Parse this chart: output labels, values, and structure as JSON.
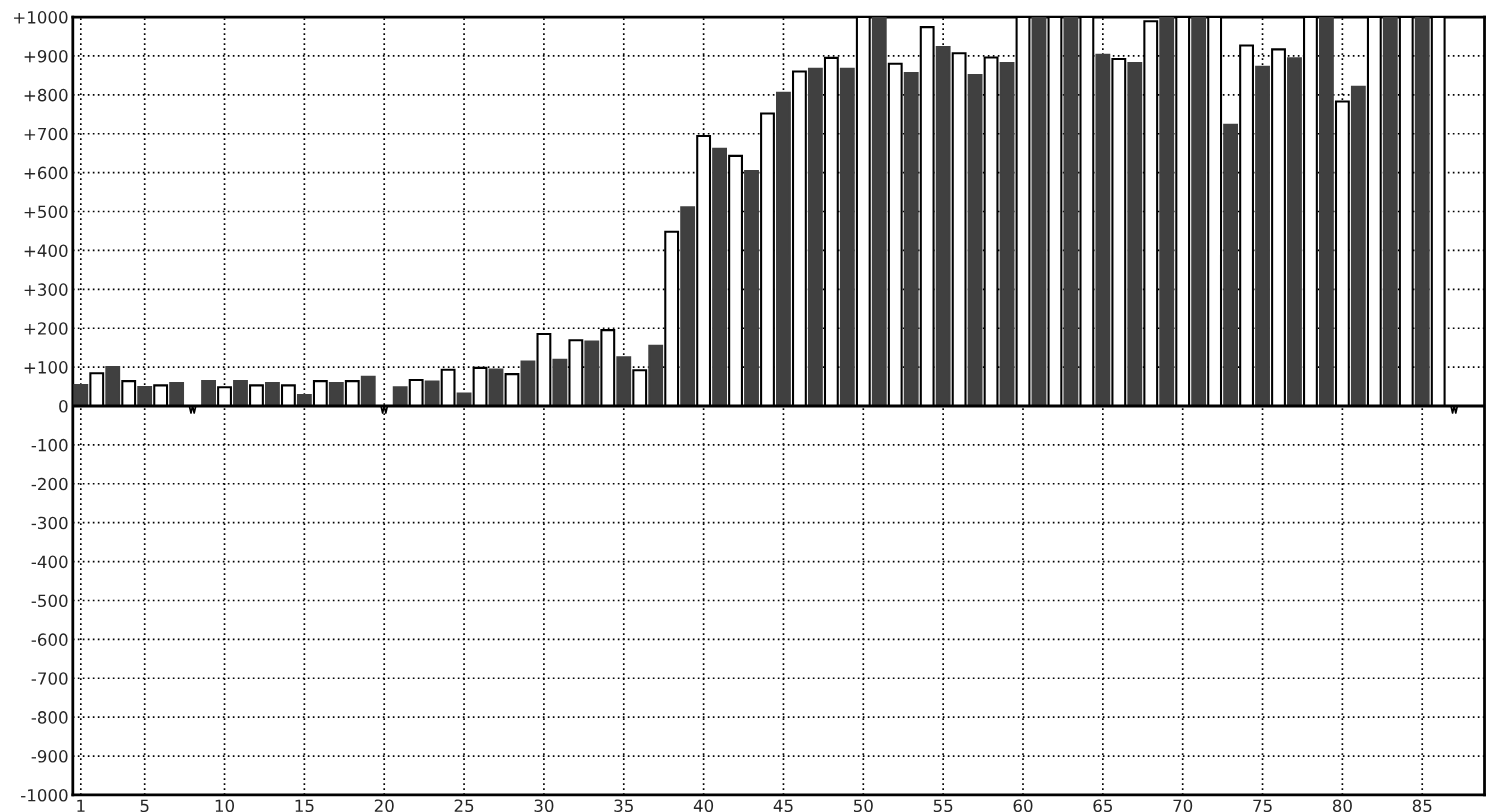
{
  "chart_data": {
    "type": "bar",
    "x": [
      1,
      2,
      3,
      4,
      5,
      6,
      7,
      8,
      9,
      10,
      11,
      12,
      13,
      14,
      15,
      16,
      17,
      18,
      19,
      20,
      21,
      22,
      23,
      24,
      25,
      26,
      27,
      28,
      29,
      30,
      31,
      32,
      33,
      34,
      35,
      36,
      37,
      38,
      39,
      40,
      41,
      42,
      43,
      44,
      45,
      46,
      47,
      48,
      49,
      50,
      51,
      52,
      53,
      54,
      55,
      56,
      57,
      58,
      59,
      60,
      61,
      62,
      63,
      64,
      65,
      66,
      67,
      68,
      69,
      70,
      71,
      72,
      73,
      74,
      75,
      76,
      77,
      78,
      79,
      80,
      81,
      82,
      83,
      84,
      85,
      86,
      87
    ],
    "values": [
      54,
      84,
      100,
      64,
      49,
      53,
      59,
      0,
      64,
      48,
      64,
      53,
      59,
      53,
      28,
      64,
      59,
      64,
      75,
      0,
      48,
      67,
      63,
      93,
      32,
      98,
      94,
      82,
      114,
      185,
      119,
      169,
      166,
      195,
      125,
      92,
      155,
      448,
      511,
      694,
      661,
      643,
      604,
      752,
      805,
      860,
      867,
      895,
      867,
      1000,
      1000,
      880,
      856,
      974,
      923,
      907,
      851,
      896,
      882,
      1000,
      1000,
      1000,
      1000,
      1000,
      903,
      892,
      882,
      989,
      1000,
      1000,
      1000,
      1000,
      723,
      927,
      872,
      917,
      894,
      1000,
      1000,
      783,
      821,
      1000,
      1000,
      1000,
      1000,
      1000,
      0
    ],
    "colors": [
      "#404040",
      "#ffffff",
      "#404040",
      "#ffffff",
      "#404040",
      "#ffffff",
      "#404040",
      "#000000",
      "#404040",
      "#ffffff",
      "#404040",
      "#ffffff",
      "#404040",
      "#ffffff",
      "#404040",
      "#ffffff",
      "#404040",
      "#ffffff",
      "#404040",
      "#000000",
      "#404040",
      "#ffffff",
      "#404040",
      "#ffffff",
      "#404040",
      "#ffffff",
      "#404040",
      "#ffffff",
      "#404040",
      "#ffffff",
      "#404040",
      "#ffffff",
      "#404040",
      "#ffffff",
      "#404040",
      "#ffffff",
      "#404040",
      "#ffffff",
      "#404040",
      "#ffffff",
      "#404040",
      "#ffffff",
      "#404040",
      "#ffffff",
      "#404040",
      "#ffffff",
      "#404040",
      "#ffffff",
      "#404040",
      "#ffffff",
      "#404040",
      "#ffffff",
      "#404040",
      "#ffffff",
      "#404040",
      "#ffffff",
      "#404040",
      "#ffffff",
      "#404040",
      "#ffffff",
      "#404040",
      "#ffffff",
      "#404040",
      "#ffffff",
      "#404040",
      "#ffffff",
      "#404040",
      "#ffffff",
      "#404040",
      "#ffffff",
      "#404040",
      "#ffffff",
      "#404040",
      "#ffffff",
      "#404040",
      "#ffffff",
      "#404040",
      "#ffffff",
      "#404040",
      "#ffffff",
      "#404040",
      "#ffffff",
      "#404040",
      "#ffffff",
      "#404040",
      "#ffffff",
      "#000000"
    ],
    "xlim": [
      0.5,
      88.9
    ],
    "xticks": [
      1,
      5,
      10,
      15,
      20,
      25,
      30,
      35,
      40,
      45,
      50,
      55,
      60,
      65,
      70,
      75,
      80,
      85
    ],
    "ylim": [
      -1000,
      1000
    ],
    "yticks": [
      {
        "value": -1000,
        "label": "-1000"
      },
      {
        "value": -900,
        "label": "-900"
      },
      {
        "value": -800,
        "label": "-800"
      },
      {
        "value": -700,
        "label": "-700"
      },
      {
        "value": -600,
        "label": "-600"
      },
      {
        "value": -500,
        "label": "-500"
      },
      {
        "value": -400,
        "label": "-400"
      },
      {
        "value": -300,
        "label": "-300"
      },
      {
        "value": -200,
        "label": "-200"
      },
      {
        "value": -100,
        "label": "-100"
      },
      0,
      {
        "value": 100,
        "label": "+100"
      },
      {
        "value": 200,
        "label": "+200"
      },
      {
        "value": 300,
        "label": "+300"
      },
      {
        "value": 400,
        "label": "+400"
      },
      {
        "value": 500,
        "label": "+500"
      },
      {
        "value": 600,
        "label": "+600"
      },
      {
        "value": 700,
        "label": "+700"
      },
      {
        "value": 800,
        "label": "+800"
      },
      {
        "value": 900,
        "label": "+900"
      },
      {
        "value": 1000,
        "label": "+1000"
      }
    ],
    "grid": true
  }
}
